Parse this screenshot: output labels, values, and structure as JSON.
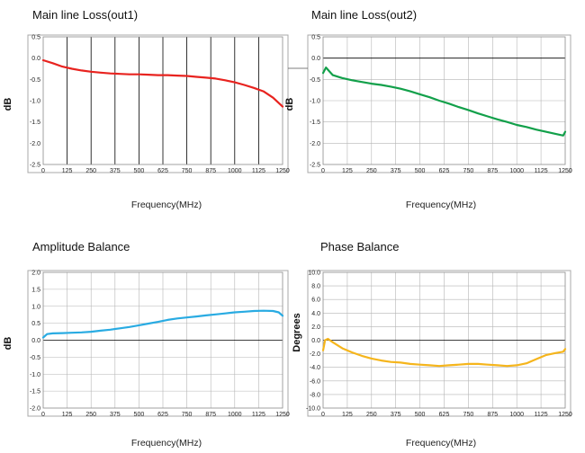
{
  "chart_data": [
    {
      "type": "line",
      "title": "Main line Loss(out1)",
      "xlabel": "Frequency(MHz)",
      "ylabel": "dB",
      "xlim": [
        0,
        1250
      ],
      "ylim": [
        -2.5,
        0.5
      ],
      "xticks": [
        0,
        125,
        250,
        375,
        500,
        625,
        750,
        875,
        1000,
        1125,
        1250
      ],
      "xtick_labels": [
        "0",
        "125",
        "250",
        "375",
        "500",
        "625",
        "750",
        "875",
        "1000",
        "1125",
        "1250"
      ],
      "yticks": [
        0.5,
        0.0,
        -0.5,
        -1.0,
        -1.5,
        -2.0,
        -2.5
      ],
      "ytick_labels": [
        "0.5",
        "0.0",
        "-0.5",
        "-1.0",
        "-1.5",
        "-2.0",
        "-2.5"
      ],
      "grid": "vertical",
      "series": [
        {
          "color": "#e8231f",
          "x": [
            0,
            50,
            100,
            150,
            200,
            250,
            300,
            350,
            400,
            450,
            500,
            550,
            600,
            650,
            700,
            750,
            800,
            850,
            900,
            950,
            1000,
            1050,
            1100,
            1150,
            1200,
            1250
          ],
          "y": [
            -0.05,
            -0.12,
            -0.2,
            -0.25,
            -0.29,
            -0.32,
            -0.34,
            -0.36,
            -0.37,
            -0.38,
            -0.38,
            -0.39,
            -0.4,
            -0.4,
            -0.41,
            -0.42,
            -0.44,
            -0.46,
            -0.48,
            -0.52,
            -0.57,
            -0.63,
            -0.7,
            -0.78,
            -0.93,
            -1.14
          ]
        }
      ]
    },
    {
      "type": "line",
      "title": "Main line Loss(out2)",
      "xlabel": "Frequency(MHz)",
      "ylabel": "dB",
      "xlim": [
        0,
        1250
      ],
      "ylim": [
        -2.5,
        0.5
      ],
      "xticks": [
        0,
        125,
        250,
        375,
        500,
        625,
        750,
        875,
        1000,
        1125,
        1250
      ],
      "xtick_labels": [
        "0",
        "125",
        "250",
        "375",
        "500",
        "625",
        "750",
        "875",
        "1000",
        "1125",
        "1250"
      ],
      "yticks": [
        0.5,
        0.0,
        -0.5,
        -1.0,
        -1.5,
        -2.0,
        -2.5
      ],
      "ytick_labels": [
        "0.5",
        "0.0",
        "-0.5",
        "-1.0",
        "-1.5",
        "-2.0",
        "-2.5"
      ],
      "grid": "both",
      "series": [
        {
          "color": "#12a04a",
          "x": [
            0,
            15,
            30,
            50,
            100,
            150,
            200,
            250,
            300,
            350,
            400,
            450,
            500,
            550,
            600,
            650,
            700,
            750,
            800,
            850,
            900,
            950,
            1000,
            1050,
            1100,
            1150,
            1200,
            1240,
            1250
          ],
          "y": [
            -0.35,
            -0.22,
            -0.3,
            -0.4,
            -0.47,
            -0.52,
            -0.56,
            -0.6,
            -0.63,
            -0.67,
            -0.72,
            -0.78,
            -0.85,
            -0.92,
            -1.0,
            -1.07,
            -1.15,
            -1.22,
            -1.3,
            -1.37,
            -1.44,
            -1.5,
            -1.57,
            -1.62,
            -1.68,
            -1.73,
            -1.78,
            -1.82,
            -1.73
          ]
        }
      ]
    },
    {
      "type": "line",
      "title": "Amplitude Balance",
      "xlabel": "Frequency(MHz)",
      "ylabel": "dB",
      "xlim": [
        0,
        1250
      ],
      "ylim": [
        -2.0,
        2.0
      ],
      "xticks": [
        0,
        125,
        250,
        375,
        500,
        625,
        750,
        875,
        1000,
        1125,
        1250
      ],
      "xtick_labels": [
        "0",
        "125",
        "250",
        "375",
        "500",
        "625",
        "750",
        "875",
        "1000",
        "1125",
        "1250"
      ],
      "yticks": [
        2.0,
        1.5,
        1.0,
        0.5,
        0.0,
        -0.5,
        -1.0,
        -1.5,
        -2.0
      ],
      "ytick_labels": [
        "2.0",
        "1.5",
        "1.0",
        "0.5",
        "0.0",
        "-0.5",
        "-1.0",
        "-1.5",
        "-2.0"
      ],
      "grid": "both",
      "series": [
        {
          "color": "#29abe2",
          "x": [
            0,
            20,
            50,
            100,
            150,
            200,
            250,
            300,
            350,
            400,
            450,
            500,
            550,
            600,
            650,
            700,
            750,
            800,
            850,
            900,
            950,
            1000,
            1050,
            1100,
            1150,
            1200,
            1230,
            1250
          ],
          "y": [
            0.08,
            0.18,
            0.2,
            0.21,
            0.22,
            0.23,
            0.25,
            0.28,
            0.31,
            0.35,
            0.39,
            0.44,
            0.49,
            0.54,
            0.6,
            0.64,
            0.67,
            0.7,
            0.73,
            0.76,
            0.79,
            0.82,
            0.84,
            0.86,
            0.87,
            0.86,
            0.82,
            0.72
          ]
        }
      ]
    },
    {
      "type": "line",
      "title": "Phase  Balance",
      "xlabel": "Frequency(MHz)",
      "ylabel": "Degrees",
      "xlim": [
        0,
        1250
      ],
      "ylim": [
        -10.0,
        10.0
      ],
      "xticks": [
        0,
        125,
        250,
        375,
        500,
        625,
        750,
        875,
        1000,
        1125,
        1250
      ],
      "xtick_labels": [
        "0",
        "125",
        "250",
        "375",
        "500",
        "625",
        "750",
        "875",
        "1000",
        "1125",
        "1250"
      ],
      "yticks": [
        10.0,
        8.0,
        6.0,
        4.0,
        2.0,
        0.0,
        -2.0,
        -4.0,
        -6.0,
        -8.0,
        -10.0
      ],
      "ytick_labels": [
        "10.0",
        "8.0",
        "6.0",
        "4.0",
        "2.0",
        "0.0",
        "-2.0",
        "-4.0",
        "-6.0",
        "-8.0",
        "-10.0"
      ],
      "grid": "both",
      "series": [
        {
          "color": "#f5b51c",
          "x": [
            0,
            10,
            25,
            50,
            100,
            150,
            200,
            250,
            300,
            350,
            400,
            450,
            500,
            550,
            600,
            650,
            700,
            750,
            800,
            850,
            900,
            950,
            1000,
            1050,
            1100,
            1150,
            1200,
            1240,
            1250
          ],
          "y": [
            -1.5,
            0.0,
            0.2,
            -0.3,
            -1.2,
            -1.8,
            -2.3,
            -2.7,
            -3.0,
            -3.2,
            -3.3,
            -3.5,
            -3.6,
            -3.7,
            -3.8,
            -3.7,
            -3.6,
            -3.5,
            -3.5,
            -3.6,
            -3.7,
            -3.8,
            -3.7,
            -3.4,
            -2.8,
            -2.2,
            -1.9,
            -1.7,
            -1.3
          ]
        }
      ]
    }
  ]
}
